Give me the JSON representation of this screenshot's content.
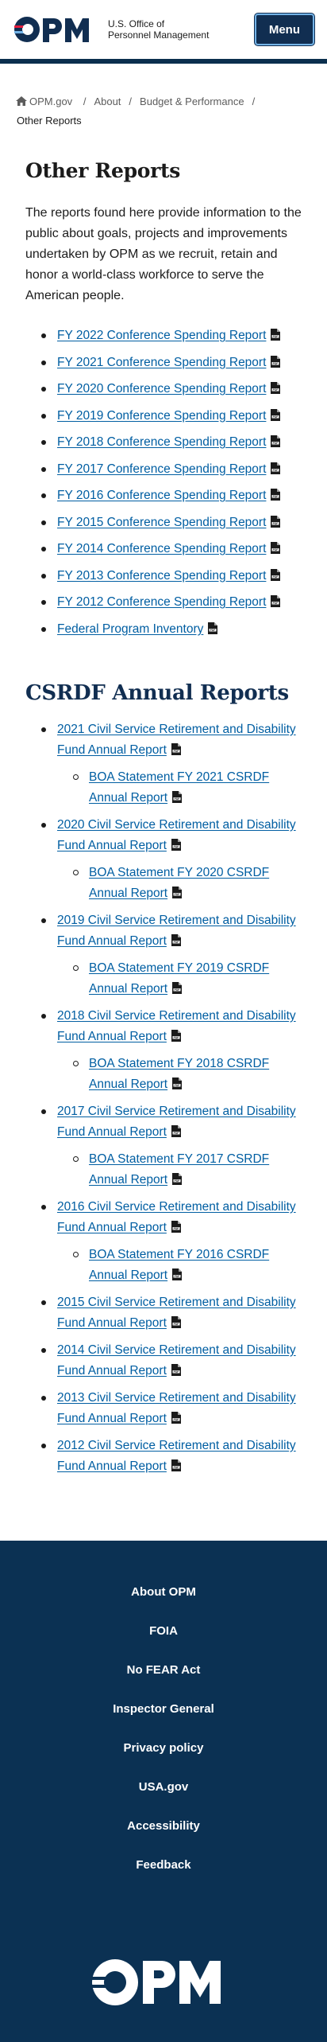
{
  "header": {
    "logo_word": "OPM",
    "logo_line1": "U.S. Office of",
    "logo_line2": "Personnel Management",
    "menu_label": "Menu"
  },
  "breadcrumb": {
    "home": "OPM.gov",
    "about": "About",
    "budget": "Budget & Performance",
    "current": "Other Reports"
  },
  "page": {
    "title": "Other Reports",
    "intro": "The reports found here provide information to the public about goals, projects and improvements undertaken by OPM as we recruit, retain and honor a world-class workforce to serve the American people."
  },
  "other_reports": [
    "FY 2022 Conference Spending Report",
    "FY 2021 Conference Spending Report",
    "FY 2020 Conference Spending Report",
    "FY 2019 Conference Spending Report",
    "FY 2018 Conference Spending Report",
    "FY 2017 Conference Spending Report",
    "FY 2016 Conference Spending Report",
    "FY 2015 Conference Spending Report",
    "FY 2014 Conference Spending Report",
    "FY 2013 Conference Spending Report",
    "FY 2012 Conference Spending Report",
    "Federal Program Inventory"
  ],
  "csrdf": {
    "heading": "CSRDF Annual Reports",
    "reports": [
      {
        "label": "2021 Civil Service Retirement and Disability Fund Annual Report",
        "sub": "BOA Statement FY 2021 CSRDF Annual Report"
      },
      {
        "label": "2020 Civil Service Retirement and Disability Fund Annual Report",
        "sub": "BOA Statement FY 2020 CSRDF Annual Report"
      },
      {
        "label": "2019 Civil Service Retirement and Disability Fund Annual Report",
        "sub": "BOA Statement FY 2019 CSRDF Annual Report"
      },
      {
        "label": "2018 Civil Service Retirement and Disability Fund Annual Report",
        "sub": "BOA Statement FY 2018 CSRDF Annual Report"
      },
      {
        "label": "2017 Civil Service Retirement and Disability Fund Annual Report",
        "sub": "BOA Statement FY 2017 CSRDF Annual Report"
      },
      {
        "label": "2016 Civil Service Retirement and Disability Fund Annual Report",
        "sub": "BOA Statement FY 2016 CSRDF Annual Report"
      },
      {
        "label": "2015 Civil Service Retirement and Disability Fund Annual Report"
      },
      {
        "label": "2014 Civil Service Retirement and Disability Fund Annual Report"
      },
      {
        "label": "2013 Civil Service Retirement and Disability Fund Annual Report"
      },
      {
        "label": "2012 Civil Service Retirement and Disability Fund Annual Report"
      }
    ]
  },
  "footer": {
    "links": [
      "About OPM",
      "FOIA",
      "No FEAR Act",
      "Inspector General",
      "Privacy policy",
      "USA.gov",
      "Accessibility",
      "Feedback"
    ],
    "logo_word": "OPM"
  },
  "icons": {
    "pdf": "pdf-file-icon",
    "home": "home-icon"
  },
  "colors": {
    "link": "#005ea2",
    "navy": "#112e51",
    "footer_bg": "#0b3153"
  }
}
